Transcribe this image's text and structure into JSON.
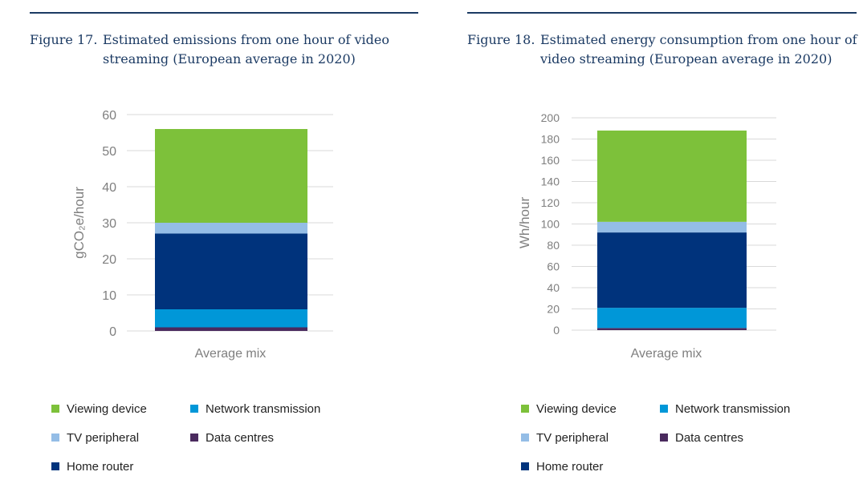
{
  "colors": {
    "viewing_device": "#7dc13a",
    "tv_peripheral": "#94bde6",
    "home_router": "#00337c",
    "network_transmission": "#0097d8",
    "data_centres": "#4a2a5e",
    "caption_text": "#1b3a63",
    "gridline": "#d9d9d9"
  },
  "figures": [
    {
      "number": "Figure 17.",
      "title": "Estimated emissions from one hour of video streaming (European average in 2020)"
    },
    {
      "number": "Figure 18.",
      "title": "Estimated energy consumption from one hour of video streaming (European average in 2020)"
    }
  ],
  "chart_data": [
    {
      "type": "bar",
      "stacked": true,
      "categories": [
        "Average mix"
      ],
      "ylabel": "gCO₂e/hour",
      "ylim": [
        0,
        60
      ],
      "yticks": [
        0,
        10,
        20,
        30,
        40,
        50,
        60
      ],
      "grid": true,
      "legend_position": "bottom",
      "series": [
        {
          "name": "Data centres",
          "values": [
            1
          ]
        },
        {
          "name": "Network transmission",
          "values": [
            5
          ]
        },
        {
          "name": "Home router",
          "values": [
            21
          ]
        },
        {
          "name": "TV peripheral",
          "values": [
            3
          ]
        },
        {
          "name": "Viewing device",
          "values": [
            26
          ]
        }
      ]
    },
    {
      "type": "bar",
      "stacked": true,
      "categories": [
        "Average mix"
      ],
      "ylabel": "Wh/hour",
      "ylim": [
        0,
        200
      ],
      "yticks": [
        0,
        20,
        40,
        60,
        80,
        100,
        120,
        140,
        160,
        180,
        200
      ],
      "grid": true,
      "legend_position": "bottom",
      "series": [
        {
          "name": "Data centres",
          "values": [
            2
          ]
        },
        {
          "name": "Network transmission",
          "values": [
            19
          ]
        },
        {
          "name": "Home router",
          "values": [
            71
          ]
        },
        {
          "name": "TV peripheral",
          "values": [
            10
          ]
        },
        {
          "name": "Viewing device",
          "values": [
            86
          ]
        }
      ]
    }
  ],
  "legend": [
    {
      "key": "viewing_device",
      "label": "Viewing device"
    },
    {
      "key": "network_transmission",
      "label": "Network transmission"
    },
    {
      "key": "tv_peripheral",
      "label": "TV peripheral"
    },
    {
      "key": "data_centres",
      "label": "Data centres"
    },
    {
      "key": "home_router",
      "label": "Home router"
    }
  ]
}
